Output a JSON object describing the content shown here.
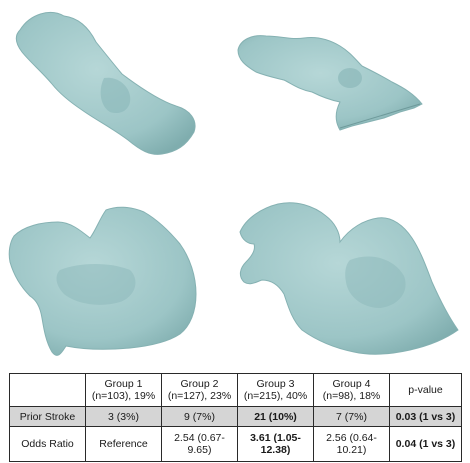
{
  "table": {
    "header": {
      "empty": "",
      "g1_name": "Group 1",
      "g1_n": "(n=103), 19%",
      "g2_name": "Group 2",
      "g2_n": "(n=127), 23%",
      "g3_name": "Group 3",
      "g3_n": "(n=215), 40%",
      "g4_name": "Group 4",
      "g4_n": "(n=98), 18%",
      "pvalue": "p-value"
    },
    "prior_stroke": {
      "label": "Prior Stroke",
      "g1": "3 (3%)",
      "g2": "9 (7%)",
      "g3": "21 (10%)",
      "g4": "7 (7%)",
      "p": "0.03 (1 vs 3)"
    },
    "odds_ratio": {
      "label": "Odds Ratio",
      "g1": "Reference",
      "g2_a": "2.54 (0.67-",
      "g2_b": "9.65)",
      "g3_a": "3.61 (1.05-",
      "g3_b": "12.38)",
      "g4_a": "2.56 (0.64-",
      "g4_b": "10.21)",
      "p": "0.04 (1 vs 3)"
    }
  },
  "colors": {
    "shape_fill": "#9fc7c7",
    "shape_edge": "#7aa9aa",
    "highlight_row": "#d5d5d5"
  }
}
